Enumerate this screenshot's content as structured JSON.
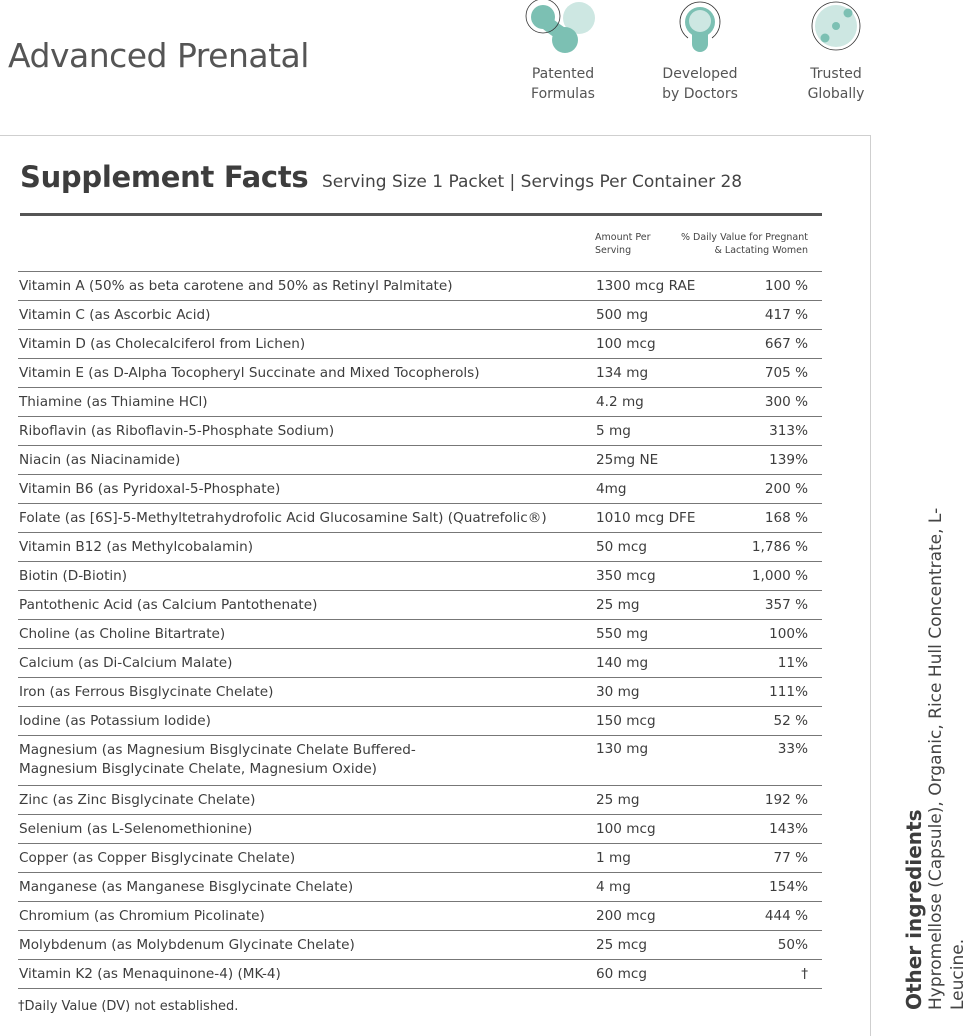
{
  "header": {
    "title": "Advanced Prenatal"
  },
  "badges": [
    {
      "icon": "molecule-icon",
      "line1": "Patented",
      "line2": "Formulas"
    },
    {
      "icon": "doctor-icon",
      "line1": "Developed",
      "line2": "by Doctors"
    },
    {
      "icon": "globe-icon",
      "line1": "Trusted",
      "line2": "Globally"
    }
  ],
  "accent_color": "#7cc0b3",
  "facts": {
    "title": "Supplement Facts",
    "serving": "Serving Size 1 Packet | Servings Per Container 28",
    "col_amount": [
      "Amount Per",
      "Serving"
    ],
    "col_dv": [
      "% Daily Value for Pregnant",
      "& Lactating Women"
    ],
    "rows": [
      {
        "name": "Vitamin A (50% as beta carotene and 50% as Retinyl Palmitate)",
        "amount": "1300 mcg RAE",
        "dv": "100 %"
      },
      {
        "name": "Vitamin C (as Ascorbic Acid)",
        "amount": "500 mg",
        "dv": "417 %"
      },
      {
        "name": "Vitamin D (as Cholecalciferol from Lichen)",
        "amount": "100 mcg",
        "dv": "667 %"
      },
      {
        "name": "Vitamin E (as D-Alpha Tocopheryl Succinate and Mixed Tocopherols)",
        "amount": "134 mg",
        "dv": "705 %"
      },
      {
        "name": "Thiamine (as Thiamine HCl)",
        "amount": "4.2 mg",
        "dv": "300 %"
      },
      {
        "name": "Riboflavin (as Riboflavin-5-Phosphate Sodium)",
        "amount": "5 mg",
        "dv": "313%"
      },
      {
        "name": "Niacin (as Niacinamide)",
        "amount": "25mg NE",
        "dv": "139%"
      },
      {
        "name": "Vitamin B6 (as Pyridoxal-5-Phosphate)",
        "amount": "4mg",
        "dv": "200 %"
      },
      {
        "name": "Folate (as [6S]-5-Methyltetrahydrofolic Acid Glucosamine Salt) (Quatrefolic®)",
        "amount": "1010 mcg DFE",
        "dv": "168 %"
      },
      {
        "name": "Vitamin B12 (as Methylcobalamin)",
        "amount": "50 mcg",
        "dv": "1,786 %"
      },
      {
        "name": "Biotin (D-Biotin)",
        "amount": "350 mcg",
        "dv": "1,000 %"
      },
      {
        "name": "Pantothenic Acid (as Calcium Pantothenate)",
        "amount": "25 mg",
        "dv": "357 %"
      },
      {
        "name": "Choline (as Choline Bitartrate)",
        "amount": "550 mg",
        "dv": "100%"
      },
      {
        "name": "Calcium (as Di-Calcium Malate)",
        "amount": "140 mg",
        "dv": "11%"
      },
      {
        "name": "Iron (as Ferrous Bisglycinate Chelate)",
        "amount": "30 mg",
        "dv": "111%"
      },
      {
        "name": "Iodine (as Potassium Iodide)",
        "amount": "150 mcg",
        "dv": "52 %"
      },
      {
        "name": "Magnesium (as Magnesium Bisglycinate Chelate Buffered-Magnesium Bisglycinate Chelate, Magnesium Oxide)",
        "amount": "130 mg",
        "dv": "33%"
      },
      {
        "name": "Zinc (as Zinc Bisglycinate Chelate)",
        "amount": "25 mg",
        "dv": "192 %"
      },
      {
        "name": "Selenium (as L-Selenomethionine)",
        "amount": "100 mcg",
        "dv": "143%"
      },
      {
        "name": "Copper (as Copper Bisglycinate Chelate)",
        "amount": "1 mg",
        "dv": "77 %"
      },
      {
        "name": "Manganese (as Manganese Bisglycinate Chelate)",
        "amount": "4 mg",
        "dv": "154%"
      },
      {
        "name": "Chromium (as Chromium Picolinate)",
        "amount": "200 mcg",
        "dv": "444 %"
      },
      {
        "name": "Molybdenum (as Molybdenum Glycinate Chelate)",
        "amount": "25 mcg",
        "dv": "50%"
      },
      {
        "name": "Vitamin K2 (as Menaquinone-4) (MK-4)",
        "amount": "60 mcg",
        "dv": "†"
      }
    ],
    "footnote": "†Daily Value (DV) not established."
  },
  "other_ingredients": {
    "title": "Other ingredients",
    "text": "Hypromellose (Capsule), Organic, Rice Hull Concentrate, L-Leucine."
  }
}
